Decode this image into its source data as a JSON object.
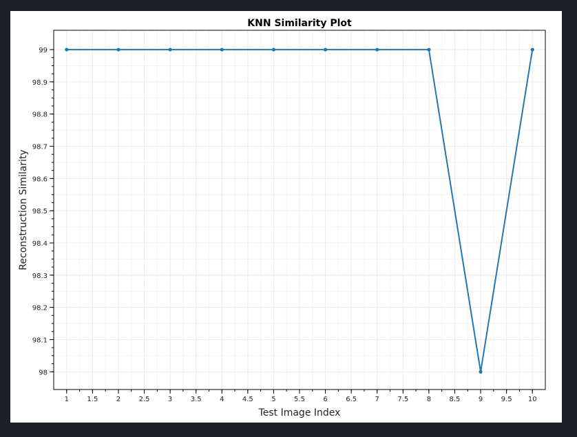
{
  "chart_data": {
    "type": "line",
    "title": "KNN Similarity Plot",
    "xlabel": "Test Image Index",
    "ylabel": "Reconstruction Similarity",
    "xlim": [
      0.75,
      10.25
    ],
    "ylim": [
      97.945,
      99.06
    ],
    "xticks": [
      1,
      1.5,
      2,
      2.5,
      3,
      3.5,
      4,
      4.5,
      5,
      5.5,
      6,
      6.5,
      7,
      7.5,
      8,
      8.5,
      9,
      9.5,
      10
    ],
    "yticks": [
      98,
      98.1,
      98.2,
      98.3,
      98.4,
      98.5,
      98.6,
      98.7,
      98.8,
      98.9,
      99
    ],
    "grid": true,
    "series": [
      {
        "x": [
          1,
          2,
          3,
          4,
          5,
          6,
          7,
          8,
          9,
          10
        ],
        "values": [
          99,
          99,
          99,
          99,
          99,
          99,
          99,
          99,
          98,
          99
        ]
      }
    ],
    "line_color": "#1f77b4",
    "grid_color": "#ebebeb",
    "axis_color": "#000000"
  }
}
